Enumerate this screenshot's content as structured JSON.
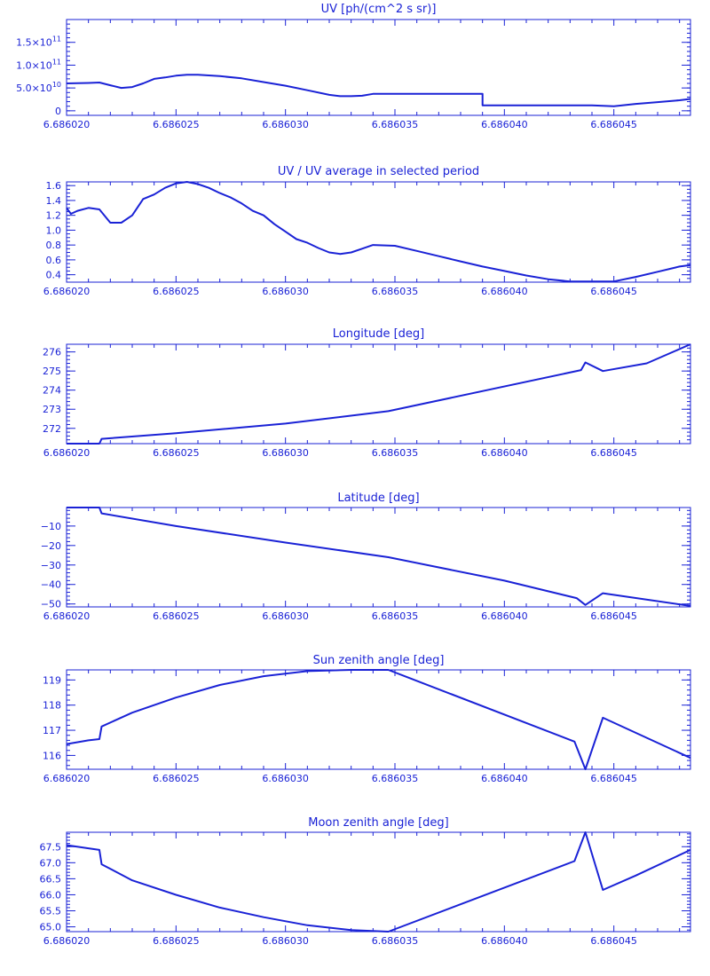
{
  "colors": {
    "ink": "#1a22d6",
    "background": "#ffffff"
  },
  "chart_data": [
    {
      "type": "line",
      "title": "UV [ph/(cm^2 s sr)]",
      "xlim": [
        6.68602,
        6.6860485
      ],
      "ylim": [
        -10000000000.0,
        200000000000.0
      ],
      "x_ticks": [
        {
          "value": 6.68602,
          "label": "6.686020"
        },
        {
          "value": 6.686025,
          "label": "6.686025"
        },
        {
          "value": 6.68603,
          "label": "6.686030"
        },
        {
          "value": 6.686035,
          "label": "6.686035"
        },
        {
          "value": 6.68604,
          "label": "6.686040"
        },
        {
          "value": 6.686045,
          "label": "6.686045"
        }
      ],
      "y_ticks": [
        {
          "value": 0,
          "label": "0"
        },
        {
          "value": 50000000000.0,
          "base": "5.0×10",
          "exp": "10"
        },
        {
          "value": 100000000000.0,
          "base": "1.0×10",
          "exp": "11"
        },
        {
          "value": 150000000000.0,
          "base": "1.5×10",
          "exp": "11"
        }
      ],
      "y_minor_step": 10000000000.0,
      "series": [
        {
          "x": [
            6.68602,
            6.686021,
            6.6860215,
            6.686022,
            6.6860225,
            6.686023,
            6.6860235,
            6.686024,
            6.6860245,
            6.686025,
            6.6860255,
            6.686026,
            6.686027,
            6.686028,
            6.686029,
            6.68603,
            6.686031,
            6.686032,
            6.6860325,
            6.686033,
            6.6860335,
            6.686034,
            6.686035,
            6.686036,
            6.686037,
            6.686038,
            6.686039,
            6.686039,
            6.68604,
            6.686041,
            6.686042,
            6.686043,
            6.686044,
            6.686045,
            6.686046,
            6.686047,
            6.686048,
            6.6860485
          ],
          "y": [
            60000000000.0,
            61000000000.0,
            62000000000.0,
            56000000000.0,
            50000000000.0,
            52000000000.0,
            60000000000.0,
            70000000000.0,
            73000000000.0,
            77000000000.0,
            79000000000.0,
            79000000000.0,
            76000000000.0,
            71000000000.0,
            63000000000.0,
            55000000000.0,
            45000000000.0,
            35000000000.0,
            32000000000.0,
            32000000000.0,
            33000000000.0,
            37000000000.0,
            37000000000.0,
            37000000000.0,
            37000000000.0,
            37000000000.0,
            37000000000.0,
            12000000000.0,
            12000000000.0,
            12000000000.0,
            12000000000.0,
            12000000000.0,
            12000000000.0,
            10000000000.0,
            15000000000.0,
            19000000000.0,
            23000000000.0,
            26000000000.0
          ]
        }
      ]
    },
    {
      "type": "line",
      "title": "UV / UV average in selected period",
      "xlim": [
        6.68602,
        6.6860485
      ],
      "ylim": [
        0.3,
        1.65
      ],
      "x_ticks": [
        {
          "value": 6.68602,
          "label": "6.686020"
        },
        {
          "value": 6.686025,
          "label": "6.686025"
        },
        {
          "value": 6.68603,
          "label": "6.686030"
        },
        {
          "value": 6.686035,
          "label": "6.686035"
        },
        {
          "value": 6.68604,
          "label": "6.686040"
        },
        {
          "value": 6.686045,
          "label": "6.686045"
        }
      ],
      "y_ticks": [
        {
          "value": 0.4,
          "label": "0.4"
        },
        {
          "value": 0.6,
          "label": "0.6"
        },
        {
          "value": 0.8,
          "label": "0.8"
        },
        {
          "value": 1.0,
          "label": "1.0"
        },
        {
          "value": 1.2,
          "label": "1.2"
        },
        {
          "value": 1.4,
          "label": "1.4"
        },
        {
          "value": 1.6,
          "label": "1.6"
        }
      ],
      "y_minor_step": 0.05,
      "series": [
        {
          "x": [
            6.68602,
            6.6860202,
            6.6860205,
            6.686021,
            6.6860215,
            6.686022,
            6.6860225,
            6.686023,
            6.6860235,
            6.686024,
            6.6860245,
            6.686025,
            6.6860255,
            6.686026,
            6.6860265,
            6.686027,
            6.6860275,
            6.686028,
            6.6860285,
            6.686029,
            6.6860295,
            6.68603,
            6.6860305,
            6.686031,
            6.6860315,
            6.686032,
            6.6860325,
            6.686033,
            6.6860335,
            6.686034,
            6.686035,
            6.686036,
            6.686037,
            6.686038,
            6.686039,
            6.68604,
            6.686041,
            6.686042,
            6.686043,
            6.686044,
            6.686045,
            6.686046,
            6.686047,
            6.686048,
            6.6860485
          ],
          "y": [
            1.3,
            1.22,
            1.26,
            1.3,
            1.28,
            1.1,
            1.1,
            1.2,
            1.42,
            1.48,
            1.57,
            1.63,
            1.65,
            1.62,
            1.57,
            1.5,
            1.44,
            1.36,
            1.26,
            1.2,
            1.08,
            0.98,
            0.88,
            0.83,
            0.76,
            0.7,
            0.68,
            0.7,
            0.75,
            0.8,
            0.79,
            0.72,
            0.65,
            0.58,
            0.51,
            0.45,
            0.39,
            0.34,
            0.31,
            0.31,
            0.31,
            0.37,
            0.44,
            0.51,
            0.53
          ]
        }
      ]
    },
    {
      "type": "line",
      "title": "Longitude [deg]",
      "xlim": [
        6.68602,
        6.6860485
      ],
      "ylim": [
        271.2,
        276.4
      ],
      "x_ticks": [
        {
          "value": 6.68602,
          "label": "6.686020"
        },
        {
          "value": 6.686025,
          "label": "6.686025"
        },
        {
          "value": 6.68603,
          "label": "6.686030"
        },
        {
          "value": 6.686035,
          "label": "6.686035"
        },
        {
          "value": 6.68604,
          "label": "6.686040"
        },
        {
          "value": 6.686045,
          "label": "6.686045"
        }
      ],
      "y_ticks": [
        {
          "value": 272,
          "label": "272"
        },
        {
          "value": 273,
          "label": "273"
        },
        {
          "value": 274,
          "label": "274"
        },
        {
          "value": 275,
          "label": "275"
        },
        {
          "value": 276,
          "label": "276"
        }
      ],
      "y_minor_step": 0.2,
      "series": [
        {
          "x": [
            6.68602,
            6.6860215,
            6.6860216,
            6.686025,
            6.68603,
            6.6860347,
            6.6860435,
            6.6860437,
            6.6860445,
            6.6860465,
            6.6860485
          ],
          "y": [
            271.2,
            271.2,
            271.45,
            271.75,
            272.25,
            272.9,
            275.05,
            275.45,
            275.0,
            275.4,
            276.4
          ]
        }
      ]
    },
    {
      "type": "line",
      "title": "Latitude [deg]",
      "xlim": [
        6.68602,
        6.6860485
      ],
      "ylim": [
        -51.5,
        -0.5
      ],
      "x_ticks": [
        {
          "value": 6.68602,
          "label": "6.686020"
        },
        {
          "value": 6.686025,
          "label": "6.686025"
        },
        {
          "value": 6.68603,
          "label": "6.686030"
        },
        {
          "value": 6.686035,
          "label": "6.686035"
        },
        {
          "value": 6.68604,
          "label": "6.686040"
        },
        {
          "value": 6.686045,
          "label": "6.686045"
        }
      ],
      "y_ticks": [
        {
          "value": -50,
          "label": "−50"
        },
        {
          "value": -40,
          "label": "−40"
        },
        {
          "value": -30,
          "label": "−30"
        },
        {
          "value": -20,
          "label": "−20"
        },
        {
          "value": -10,
          "label": "−10"
        }
      ],
      "y_minor_step": 2,
      "series": [
        {
          "x": [
            6.68602,
            6.6860215,
            6.6860216,
            6.686025,
            6.68603,
            6.6860347,
            6.68604,
            6.6860433,
            6.6860437,
            6.6860445,
            6.6860485
          ],
          "y": [
            -0.5,
            -0.5,
            -3.5,
            -10.0,
            -18.5,
            -26.0,
            -38.0,
            -47.0,
            -50.5,
            -44.5,
            -51.0
          ]
        }
      ]
    },
    {
      "type": "line",
      "title": "Sun zenith angle [deg]",
      "xlim": [
        6.68602,
        6.6860485
      ],
      "ylim": [
        115.45,
        119.4
      ],
      "x_ticks": [
        {
          "value": 6.68602,
          "label": "6.686020"
        },
        {
          "value": 6.686025,
          "label": "6.686025"
        },
        {
          "value": 6.68603,
          "label": "6.686030"
        },
        {
          "value": 6.686035,
          "label": "6.686035"
        },
        {
          "value": 6.68604,
          "label": "6.686040"
        },
        {
          "value": 6.686045,
          "label": "6.686045"
        }
      ],
      "y_ticks": [
        {
          "value": 116,
          "label": "116"
        },
        {
          "value": 117,
          "label": "117"
        },
        {
          "value": 118,
          "label": "118"
        },
        {
          "value": 119,
          "label": "119"
        }
      ],
      "y_minor_step": 0.2,
      "series": [
        {
          "x": [
            6.68602,
            6.686021,
            6.6860215,
            6.6860216,
            6.686023,
            6.686025,
            6.686027,
            6.686029,
            6.686031,
            6.686033,
            6.6860347,
            6.6860432,
            6.6860437,
            6.6860445,
            6.686046,
            6.6860485
          ],
          "y": [
            116.45,
            116.6,
            116.65,
            117.15,
            117.7,
            118.3,
            118.8,
            119.15,
            119.35,
            119.4,
            119.4,
            116.55,
            115.45,
            117.5,
            116.9,
            115.9
          ]
        }
      ]
    },
    {
      "type": "line",
      "title": "Moon zenith angle [deg]",
      "xlim": [
        6.68602,
        6.6860485
      ],
      "ylim": [
        64.85,
        67.95
      ],
      "x_ticks": [
        {
          "value": 6.68602,
          "label": "6.686020"
        },
        {
          "value": 6.686025,
          "label": "6.686025"
        },
        {
          "value": 6.68603,
          "label": "6.686030"
        },
        {
          "value": 6.686035,
          "label": "6.686035"
        },
        {
          "value": 6.68604,
          "label": "6.686040"
        },
        {
          "value": 6.686045,
          "label": "6.686045"
        }
      ],
      "y_ticks": [
        {
          "value": 65.0,
          "label": "65.0"
        },
        {
          "value": 65.5,
          "label": "65.5"
        },
        {
          "value": 66.0,
          "label": "66.0"
        },
        {
          "value": 66.5,
          "label": "66.5"
        },
        {
          "value": 67.0,
          "label": "67.0"
        },
        {
          "value": 67.5,
          "label": "67.5"
        }
      ],
      "y_minor_step": 0.1,
      "series": [
        {
          "x": [
            6.68602,
            6.686021,
            6.6860215,
            6.6860216,
            6.686023,
            6.686025,
            6.686027,
            6.686029,
            6.686031,
            6.686033,
            6.6860347,
            6.6860432,
            6.6860437,
            6.6860445,
            6.686046,
            6.6860485
          ],
          "y": [
            67.55,
            67.45,
            67.4,
            66.95,
            66.45,
            66.0,
            65.6,
            65.3,
            65.05,
            64.9,
            64.85,
            67.05,
            67.95,
            66.15,
            66.6,
            67.4
          ]
        }
      ]
    }
  ]
}
